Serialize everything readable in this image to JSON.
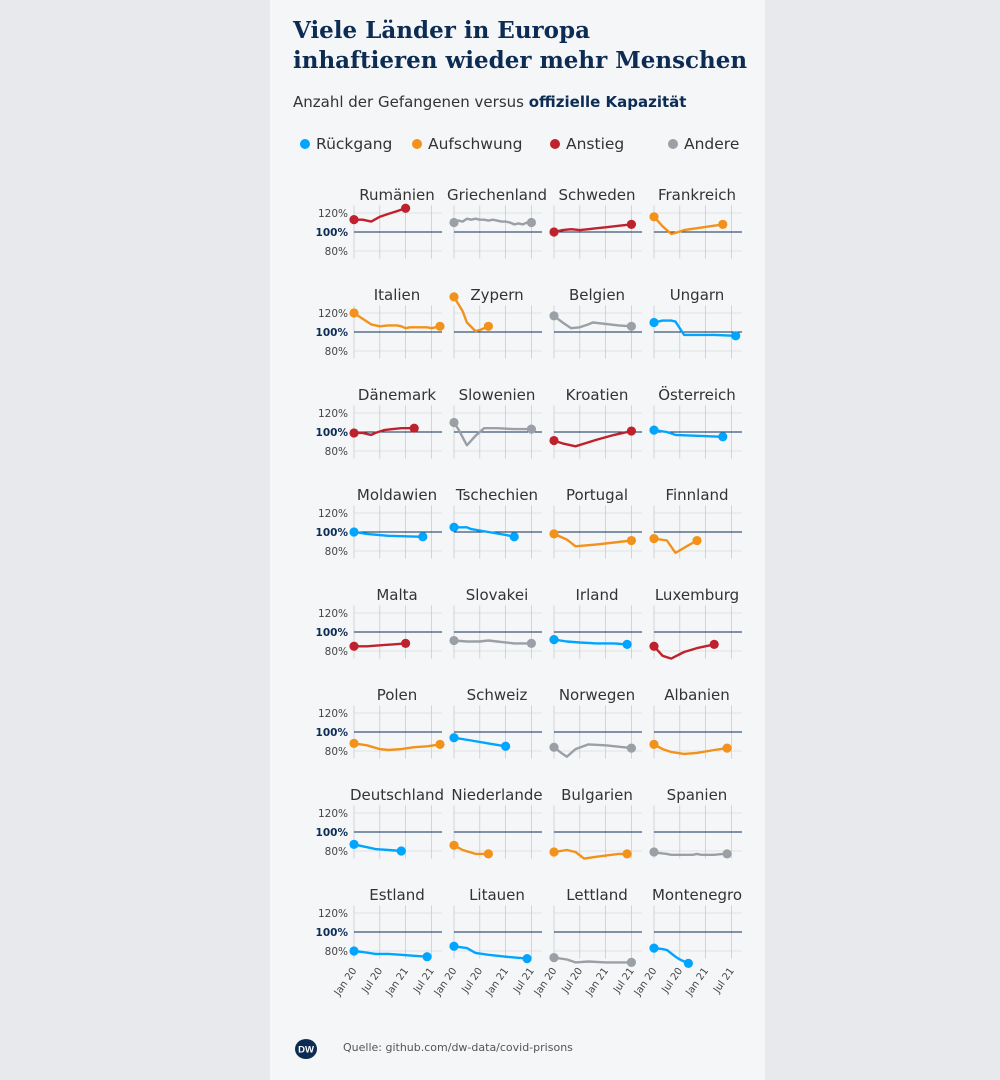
{
  "title_line1": "Viele Länder in Europa",
  "title_line2": "inhaftieren wieder mehr Menschen",
  "subtitle_prefix": "Anzahl der Gefangenen versus ",
  "subtitle_bold": "offizielle Kapazität",
  "legend": [
    {
      "label": "Rückgang",
      "color": "#00a5ff"
    },
    {
      "label": "Aufschwung",
      "color": "#f2921a"
    },
    {
      "label": "Anstieg",
      "color": "#be232d"
    },
    {
      "label": "Andere",
      "color": "#9aa0a6"
    }
  ],
  "source": "Quelle: github.com/dw-data/covid-prisons",
  "logo_text": "DW",
  "colors": {
    "background": "#e7e9ec",
    "panel": "#f5f6f8",
    "capacity_line": "#0d2c54",
    "grid": "#c9ccd1"
  },
  "chart_data": {
    "type": "line",
    "y_ticks": [
      "120%",
      "100%",
      "80%"
    ],
    "y_tick_values": [
      120,
      100,
      80
    ],
    "ylim": [
      70,
      130
    ],
    "x_ticks": [
      "Jan 20",
      "Jul 20",
      "Jan 21",
      "Jul 21"
    ],
    "x_tick_values": [
      0,
      6,
      12,
      18
    ],
    "xlim": [
      0,
      20
    ],
    "capacity": 100,
    "countries": [
      {
        "name": "Rumänien",
        "category": "Anstieg",
        "points": [
          [
            0,
            113
          ],
          [
            2,
            113
          ],
          [
            4,
            111
          ],
          [
            6,
            116
          ],
          [
            8,
            119
          ],
          [
            10,
            122
          ],
          [
            12,
            125
          ]
        ]
      },
      {
        "name": "Griechenland",
        "category": "Andere",
        "points": [
          [
            0,
            110
          ],
          [
            1,
            112
          ],
          [
            2,
            111
          ],
          [
            3,
            114
          ],
          [
            4,
            113
          ],
          [
            5,
            114
          ],
          [
            6,
            113
          ],
          [
            7,
            113
          ],
          [
            8,
            112
          ],
          [
            9,
            113
          ],
          [
            10,
            112
          ],
          [
            11,
            111
          ],
          [
            12,
            111
          ],
          [
            13,
            110
          ],
          [
            14,
            108
          ],
          [
            15,
            109
          ],
          [
            16,
            108
          ],
          [
            17,
            110
          ],
          [
            18,
            110
          ]
        ]
      },
      {
        "name": "Schweden",
        "category": "Anstieg",
        "points": [
          [
            0,
            100
          ],
          [
            2,
            102
          ],
          [
            4,
            103
          ],
          [
            6,
            102
          ],
          [
            8,
            103
          ],
          [
            10,
            104
          ],
          [
            12,
            105
          ],
          [
            14,
            106
          ],
          [
            16,
            107
          ],
          [
            18,
            108
          ]
        ]
      },
      {
        "name": "Frankreich",
        "category": "Aufschwung",
        "points": [
          [
            0,
            116
          ],
          [
            2,
            106
          ],
          [
            4,
            98
          ],
          [
            5,
            99
          ],
          [
            7,
            102
          ],
          [
            10,
            104
          ],
          [
            13,
            106
          ],
          [
            16,
            108
          ]
        ]
      },
      {
        "name": "Italien",
        "category": "Aufschwung",
        "points": [
          [
            0,
            120
          ],
          [
            2,
            114
          ],
          [
            4,
            108
          ],
          [
            6,
            106
          ],
          [
            8,
            107
          ],
          [
            10,
            107
          ],
          [
            11,
            106
          ],
          [
            12,
            104
          ],
          [
            13,
            105
          ],
          [
            15,
            105
          ],
          [
            17,
            105
          ],
          [
            18,
            104
          ],
          [
            19,
            105
          ],
          [
            20,
            106
          ]
        ]
      },
      {
        "name": "Zypern",
        "category": "Aufschwung",
        "points": [
          [
            0,
            137
          ],
          [
            2,
            122
          ],
          [
            3,
            110
          ],
          [
            5,
            101
          ],
          [
            6,
            102
          ],
          [
            8,
            106
          ]
        ]
      },
      {
        "name": "Belgien",
        "category": "Andere",
        "points": [
          [
            0,
            117
          ],
          [
            2,
            110
          ],
          [
            4,
            104
          ],
          [
            6,
            105
          ],
          [
            8,
            108
          ],
          [
            9,
            110
          ],
          [
            11,
            109
          ],
          [
            13,
            108
          ],
          [
            15,
            107
          ],
          [
            18,
            106
          ]
        ]
      },
      {
        "name": "Ungarn",
        "category": "Rückgang",
        "points": [
          [
            0,
            110
          ],
          [
            2,
            112
          ],
          [
            4,
            112
          ],
          [
            5,
            111
          ],
          [
            7,
            97
          ],
          [
            10,
            97
          ],
          [
            14,
            97
          ],
          [
            19,
            96
          ]
        ]
      },
      {
        "name": "Dänemark",
        "category": "Anstieg",
        "points": [
          [
            0,
            99
          ],
          [
            2,
            99
          ],
          [
            4,
            97
          ],
          [
            5,
            99
          ],
          [
            7,
            102
          ],
          [
            9,
            103
          ],
          [
            11,
            104
          ],
          [
            14,
            104
          ]
        ]
      },
      {
        "name": "Slowenien",
        "category": "Andere",
        "points": [
          [
            0,
            110
          ],
          [
            1,
            103
          ],
          [
            3,
            86
          ],
          [
            5,
            96
          ],
          [
            7,
            104
          ],
          [
            10,
            104
          ],
          [
            14,
            103
          ],
          [
            18,
            103
          ]
        ]
      },
      {
        "name": "Kroatien",
        "category": "Anstieg",
        "points": [
          [
            0,
            91
          ],
          [
            2,
            88
          ],
          [
            5,
            85
          ],
          [
            10,
            92
          ],
          [
            14,
            97
          ],
          [
            18,
            101
          ]
        ]
      },
      {
        "name": "Österreich",
        "category": "Rückgang",
        "points": [
          [
            0,
            102
          ],
          [
            3,
            100
          ],
          [
            5,
            97
          ],
          [
            10,
            96
          ],
          [
            16,
            95
          ]
        ]
      },
      {
        "name": "Moldawien",
        "category": "Rückgang",
        "points": [
          [
            0,
            100
          ],
          [
            3,
            98
          ],
          [
            8,
            96
          ],
          [
            16,
            95
          ]
        ]
      },
      {
        "name": "Tschechien",
        "category": "Rückgang",
        "points": [
          [
            0,
            105
          ],
          [
            3,
            105
          ],
          [
            4,
            103
          ],
          [
            8,
            100
          ],
          [
            12,
            97
          ],
          [
            14,
            95
          ]
        ]
      },
      {
        "name": "Portugal",
        "category": "Aufschwung",
        "points": [
          [
            0,
            98
          ],
          [
            3,
            92
          ],
          [
            5,
            85
          ],
          [
            10,
            87
          ],
          [
            14,
            89
          ],
          [
            18,
            91
          ]
        ]
      },
      {
        "name": "Finnland",
        "category": "Aufschwung",
        "points": [
          [
            0,
            93
          ],
          [
            3,
            91
          ],
          [
            5,
            78
          ],
          [
            8,
            86
          ],
          [
            10,
            91
          ]
        ]
      },
      {
        "name": "Malta",
        "category": "Anstieg",
        "points": [
          [
            0,
            85
          ],
          [
            3,
            85
          ],
          [
            6,
            86
          ],
          [
            9,
            87
          ],
          [
            12,
            88
          ]
        ]
      },
      {
        "name": "Slovakei",
        "category": "Andere",
        "points": [
          [
            0,
            91
          ],
          [
            3,
            90
          ],
          [
            6,
            90
          ],
          [
            8,
            91
          ],
          [
            10,
            90
          ],
          [
            14,
            88
          ],
          [
            18,
            88
          ]
        ]
      },
      {
        "name": "Irland",
        "category": "Rückgang",
        "points": [
          [
            0,
            92
          ],
          [
            3,
            90
          ],
          [
            6,
            89
          ],
          [
            10,
            88
          ],
          [
            14,
            88
          ],
          [
            17,
            87
          ]
        ]
      },
      {
        "name": "Luxemburg",
        "category": "Anstieg",
        "points": [
          [
            0,
            85
          ],
          [
            2,
            75
          ],
          [
            4,
            72
          ],
          [
            7,
            79
          ],
          [
            10,
            83
          ],
          [
            14,
            87
          ]
        ]
      },
      {
        "name": "Polen",
        "category": "Aufschwung",
        "points": [
          [
            0,
            88
          ],
          [
            3,
            86
          ],
          [
            6,
            82
          ],
          [
            8,
            81
          ],
          [
            11,
            82
          ],
          [
            14,
            84
          ],
          [
            17,
            85
          ],
          [
            20,
            87
          ]
        ]
      },
      {
        "name": "Schweiz",
        "category": "Rückgang",
        "points": [
          [
            0,
            94
          ],
          [
            4,
            91
          ],
          [
            8,
            88
          ],
          [
            12,
            85
          ]
        ]
      },
      {
        "name": "Norwegen",
        "category": "Andere",
        "points": [
          [
            0,
            84
          ],
          [
            2,
            77
          ],
          [
            3,
            74
          ],
          [
            5,
            82
          ],
          [
            8,
            87
          ],
          [
            12,
            86
          ],
          [
            18,
            83
          ]
        ]
      },
      {
        "name": "Albanien",
        "category": "Aufschwung",
        "points": [
          [
            0,
            87
          ],
          [
            2,
            82
          ],
          [
            4,
            79
          ],
          [
            7,
            77
          ],
          [
            10,
            78
          ],
          [
            14,
            81
          ],
          [
            17,
            83
          ]
        ]
      },
      {
        "name": "Deutschland",
        "category": "Rückgang",
        "points": [
          [
            0,
            87
          ],
          [
            3,
            84
          ],
          [
            5,
            82
          ],
          [
            8,
            81
          ],
          [
            11,
            80
          ]
        ]
      },
      {
        "name": "Niederlande",
        "category": "Aufschwung",
        "points": [
          [
            0,
            86
          ],
          [
            2,
            81
          ],
          [
            5,
            77
          ],
          [
            7,
            77
          ],
          [
            8,
            77
          ]
        ]
      },
      {
        "name": "Bulgarien",
        "category": "Aufschwung",
        "points": [
          [
            0,
            79
          ],
          [
            3,
            81
          ],
          [
            5,
            79
          ],
          [
            7,
            72
          ],
          [
            10,
            74
          ],
          [
            15,
            77
          ],
          [
            17,
            77
          ]
        ]
      },
      {
        "name": "Spanien",
        "category": "Andere",
        "points": [
          [
            0,
            79
          ],
          [
            1,
            78
          ],
          [
            3,
            77
          ],
          [
            4,
            76
          ],
          [
            6,
            76
          ],
          [
            9,
            76
          ],
          [
            10,
            77
          ],
          [
            11,
            76
          ],
          [
            14,
            76
          ],
          [
            16,
            77
          ],
          [
            17,
            77
          ]
        ]
      },
      {
        "name": "Estland",
        "category": "Rückgang",
        "points": [
          [
            0,
            80
          ],
          [
            2,
            79
          ],
          [
            5,
            77
          ],
          [
            8,
            77
          ],
          [
            11,
            76
          ],
          [
            14,
            75
          ],
          [
            17,
            74
          ]
        ]
      },
      {
        "name": "Litauen",
        "category": "Rückgang",
        "points": [
          [
            0,
            85
          ],
          [
            3,
            83
          ],
          [
            5,
            78
          ],
          [
            8,
            76
          ],
          [
            12,
            74
          ],
          [
            17,
            72
          ]
        ]
      },
      {
        "name": "Lettland",
        "category": "Andere",
        "points": [
          [
            0,
            73
          ],
          [
            3,
            71
          ],
          [
            5,
            68
          ],
          [
            8,
            69
          ],
          [
            12,
            68
          ],
          [
            18,
            68
          ]
        ]
      },
      {
        "name": "Montenegro",
        "category": "Rückgang",
        "points": [
          [
            0,
            83
          ],
          [
            2,
            82
          ],
          [
            3,
            81
          ],
          [
            5,
            74
          ],
          [
            6,
            71
          ],
          [
            8,
            67
          ]
        ]
      }
    ]
  }
}
